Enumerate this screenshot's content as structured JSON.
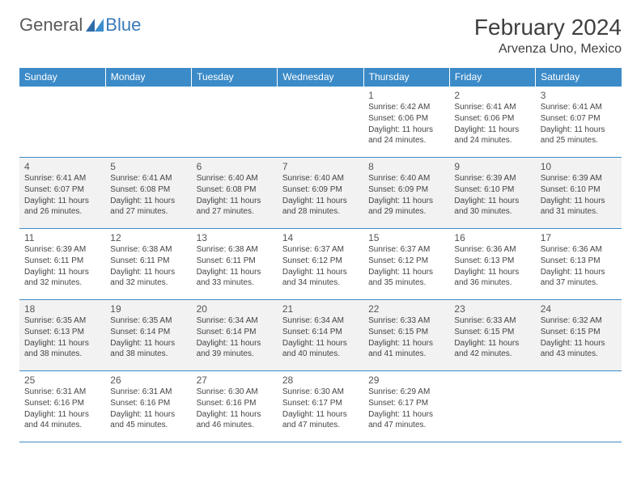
{
  "brand": {
    "part1": "General",
    "part2": "Blue",
    "logo_color": "#3a7ab8",
    "text_color": "#5a5a5a"
  },
  "title": "February 2024",
  "location": "Arvenza Uno, Mexico",
  "header_bg": "#3b8bc8",
  "alt_row_bg": "#f2f2f2",
  "border_color": "#3b8bc8",
  "weekdays": [
    "Sunday",
    "Monday",
    "Tuesday",
    "Wednesday",
    "Thursday",
    "Friday",
    "Saturday"
  ],
  "weeks": [
    {
      "alt": false,
      "cells": [
        null,
        null,
        null,
        null,
        {
          "day": "1",
          "sunrise": "Sunrise: 6:42 AM",
          "sunset": "Sunset: 6:06 PM",
          "daylight": "Daylight: 11 hours and 24 minutes."
        },
        {
          "day": "2",
          "sunrise": "Sunrise: 6:41 AM",
          "sunset": "Sunset: 6:06 PM",
          "daylight": "Daylight: 11 hours and 24 minutes."
        },
        {
          "day": "3",
          "sunrise": "Sunrise: 6:41 AM",
          "sunset": "Sunset: 6:07 PM",
          "daylight": "Daylight: 11 hours and 25 minutes."
        }
      ]
    },
    {
      "alt": true,
      "cells": [
        {
          "day": "4",
          "sunrise": "Sunrise: 6:41 AM",
          "sunset": "Sunset: 6:07 PM",
          "daylight": "Daylight: 11 hours and 26 minutes."
        },
        {
          "day": "5",
          "sunrise": "Sunrise: 6:41 AM",
          "sunset": "Sunset: 6:08 PM",
          "daylight": "Daylight: 11 hours and 27 minutes."
        },
        {
          "day": "6",
          "sunrise": "Sunrise: 6:40 AM",
          "sunset": "Sunset: 6:08 PM",
          "daylight": "Daylight: 11 hours and 27 minutes."
        },
        {
          "day": "7",
          "sunrise": "Sunrise: 6:40 AM",
          "sunset": "Sunset: 6:09 PM",
          "daylight": "Daylight: 11 hours and 28 minutes."
        },
        {
          "day": "8",
          "sunrise": "Sunrise: 6:40 AM",
          "sunset": "Sunset: 6:09 PM",
          "daylight": "Daylight: 11 hours and 29 minutes."
        },
        {
          "day": "9",
          "sunrise": "Sunrise: 6:39 AM",
          "sunset": "Sunset: 6:10 PM",
          "daylight": "Daylight: 11 hours and 30 minutes."
        },
        {
          "day": "10",
          "sunrise": "Sunrise: 6:39 AM",
          "sunset": "Sunset: 6:10 PM",
          "daylight": "Daylight: 11 hours and 31 minutes."
        }
      ]
    },
    {
      "alt": false,
      "cells": [
        {
          "day": "11",
          "sunrise": "Sunrise: 6:39 AM",
          "sunset": "Sunset: 6:11 PM",
          "daylight": "Daylight: 11 hours and 32 minutes."
        },
        {
          "day": "12",
          "sunrise": "Sunrise: 6:38 AM",
          "sunset": "Sunset: 6:11 PM",
          "daylight": "Daylight: 11 hours and 32 minutes."
        },
        {
          "day": "13",
          "sunrise": "Sunrise: 6:38 AM",
          "sunset": "Sunset: 6:11 PM",
          "daylight": "Daylight: 11 hours and 33 minutes."
        },
        {
          "day": "14",
          "sunrise": "Sunrise: 6:37 AM",
          "sunset": "Sunset: 6:12 PM",
          "daylight": "Daylight: 11 hours and 34 minutes."
        },
        {
          "day": "15",
          "sunrise": "Sunrise: 6:37 AM",
          "sunset": "Sunset: 6:12 PM",
          "daylight": "Daylight: 11 hours and 35 minutes."
        },
        {
          "day": "16",
          "sunrise": "Sunrise: 6:36 AM",
          "sunset": "Sunset: 6:13 PM",
          "daylight": "Daylight: 11 hours and 36 minutes."
        },
        {
          "day": "17",
          "sunrise": "Sunrise: 6:36 AM",
          "sunset": "Sunset: 6:13 PM",
          "daylight": "Daylight: 11 hours and 37 minutes."
        }
      ]
    },
    {
      "alt": true,
      "cells": [
        {
          "day": "18",
          "sunrise": "Sunrise: 6:35 AM",
          "sunset": "Sunset: 6:13 PM",
          "daylight": "Daylight: 11 hours and 38 minutes."
        },
        {
          "day": "19",
          "sunrise": "Sunrise: 6:35 AM",
          "sunset": "Sunset: 6:14 PM",
          "daylight": "Daylight: 11 hours and 38 minutes."
        },
        {
          "day": "20",
          "sunrise": "Sunrise: 6:34 AM",
          "sunset": "Sunset: 6:14 PM",
          "daylight": "Daylight: 11 hours and 39 minutes."
        },
        {
          "day": "21",
          "sunrise": "Sunrise: 6:34 AM",
          "sunset": "Sunset: 6:14 PM",
          "daylight": "Daylight: 11 hours and 40 minutes."
        },
        {
          "day": "22",
          "sunrise": "Sunrise: 6:33 AM",
          "sunset": "Sunset: 6:15 PM",
          "daylight": "Daylight: 11 hours and 41 minutes."
        },
        {
          "day": "23",
          "sunrise": "Sunrise: 6:33 AM",
          "sunset": "Sunset: 6:15 PM",
          "daylight": "Daylight: 11 hours and 42 minutes."
        },
        {
          "day": "24",
          "sunrise": "Sunrise: 6:32 AM",
          "sunset": "Sunset: 6:15 PM",
          "daylight": "Daylight: 11 hours and 43 minutes."
        }
      ]
    },
    {
      "alt": false,
      "cells": [
        {
          "day": "25",
          "sunrise": "Sunrise: 6:31 AM",
          "sunset": "Sunset: 6:16 PM",
          "daylight": "Daylight: 11 hours and 44 minutes."
        },
        {
          "day": "26",
          "sunrise": "Sunrise: 6:31 AM",
          "sunset": "Sunset: 6:16 PM",
          "daylight": "Daylight: 11 hours and 45 minutes."
        },
        {
          "day": "27",
          "sunrise": "Sunrise: 6:30 AM",
          "sunset": "Sunset: 6:16 PM",
          "daylight": "Daylight: 11 hours and 46 minutes."
        },
        {
          "day": "28",
          "sunrise": "Sunrise: 6:30 AM",
          "sunset": "Sunset: 6:17 PM",
          "daylight": "Daylight: 11 hours and 47 minutes."
        },
        {
          "day": "29",
          "sunrise": "Sunrise: 6:29 AM",
          "sunset": "Sunset: 6:17 PM",
          "daylight": "Daylight: 11 hours and 47 minutes."
        },
        null,
        null
      ]
    }
  ]
}
